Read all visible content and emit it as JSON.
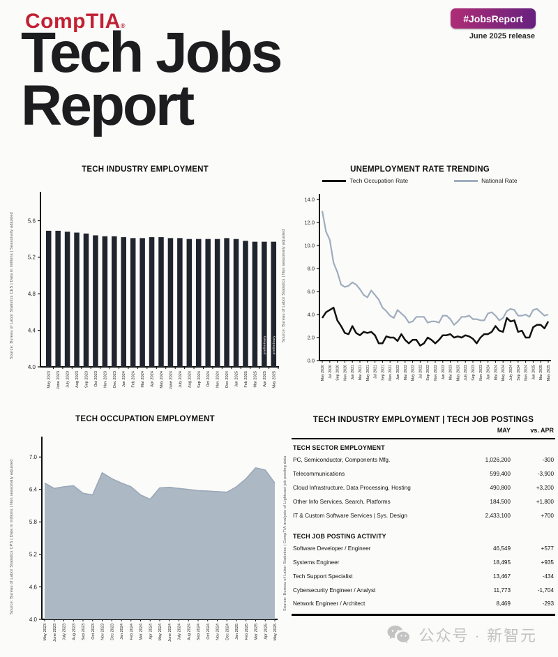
{
  "header": {
    "logo_text": "CompTIA",
    "logo_reg": "®",
    "title_line1": "Tech Jobs",
    "title_line2": "Report",
    "badge_label": "#JobsReport",
    "release_label": "June 2025 release"
  },
  "colors": {
    "brand_red": "#c22033",
    "badge_gradient_left": "#b02d75",
    "badge_gradient_right": "#64217f",
    "bar_color": "#20242e",
    "tech_line": "#111111",
    "national_line": "#9fadbd",
    "area_fill": "#adb8c5",
    "area_stroke": "#9aa8b8",
    "watermark_gray": "#c3c3c3"
  },
  "chart_data": [
    {
      "id": "tech-industry-employment",
      "type": "bar",
      "title": "TECH INDUSTRY EMPLOYMENT",
      "source_label": "Source: Bureau of Labor Statistics CES | Data in millions | Seasonally adjusted",
      "categories": [
        "May 2023",
        "June 2023",
        "July 2023",
        "Aug 2023",
        "Sep 2023",
        "Oct 2023",
        "Nov 2023",
        "Dec 2023",
        "Jan 2024",
        "Feb 2024",
        "Mar 2024",
        "Apr 2024",
        "May 2024",
        "June 2024",
        "July 2024",
        "Aug 2024",
        "Sep 2024",
        "Oct 2024",
        "Nov 2024",
        "Dec 2024",
        "Jan 2025",
        "Feb 2025",
        "Mar 2025",
        "Apr 2025",
        "May 2025"
      ],
      "values": [
        5.49,
        5.49,
        5.48,
        5.47,
        5.46,
        5.44,
        5.43,
        5.43,
        5.42,
        5.41,
        5.41,
        5.42,
        5.42,
        5.41,
        5.41,
        5.4,
        5.4,
        5.4,
        5.4,
        5.41,
        5.4,
        5.38,
        5.37,
        5.37,
        5.37
      ],
      "ylim": [
        4.0,
        5.81
      ],
      "yticks": [
        4.0,
        4.4,
        4.8,
        5.2,
        5.6
      ],
      "bar_annotation": "preliminary",
      "bar_annotation_indices": [
        23,
        24
      ],
      "grid": false
    },
    {
      "id": "unemployment-rate-trending",
      "type": "line",
      "title": "UNEMPLOYMENT RATE TRENDING",
      "source_label": "Source: Bureau of Labor Statistics | Non seasonally adjusted",
      "x_tick_labels": [
        "May 2020",
        "Jul 2020",
        "Sep 2020",
        "Nov 2020",
        "Jan 2021",
        "Mar 2021",
        "May 2021",
        "Jul 2021",
        "Sep 2021",
        "Nov 2021",
        "Jan 2022",
        "Mar 2022",
        "May 2022",
        "Jul 2022",
        "Sep 2022",
        "Nov 2022",
        "Jan 2023",
        "Mar 2023",
        "May 2023",
        "July 2023",
        "Sep 2023",
        "Nov 2023",
        "Jan 2024",
        "Mar 2024",
        "May 2024",
        "July 2024",
        "Sep 2024",
        "Nov 2024",
        "Jan 2025",
        "Mar 2025",
        "May 2025"
      ],
      "x_tick_every": 2,
      "series": [
        {
          "name": "National Rate",
          "values": [
            13.0,
            11.2,
            10.5,
            8.5,
            7.7,
            6.6,
            6.4,
            6.5,
            6.8,
            6.6,
            6.2,
            5.7,
            5.5,
            6.1,
            5.7,
            5.3,
            4.6,
            4.3,
            3.9,
            3.7,
            4.4,
            4.1,
            3.8,
            3.3,
            3.4,
            3.8,
            3.8,
            3.8,
            3.3,
            3.4,
            3.4,
            3.3,
            3.9,
            3.9,
            3.6,
            3.1,
            3.4,
            3.8,
            3.8,
            3.9,
            3.6,
            3.6,
            3.5,
            3.5,
            4.1,
            4.2,
            3.9,
            3.5,
            3.7,
            4.3,
            4.5,
            4.4,
            3.9,
            3.9,
            4.0,
            3.8,
            4.4,
            4.5,
            4.2,
            3.9,
            4.0
          ]
        },
        {
          "name": "Tech Occupation Rate",
          "values": [
            3.7,
            4.2,
            4.4,
            4.6,
            3.5,
            3.0,
            2.4,
            2.3,
            3.0,
            2.4,
            2.2,
            2.5,
            2.4,
            2.5,
            2.2,
            1.5,
            1.5,
            2.1,
            2.0,
            2.0,
            1.7,
            2.3,
            1.8,
            1.5,
            1.8,
            1.8,
            1.3,
            1.5,
            2.0,
            1.8,
            1.5,
            1.8,
            2.2,
            2.2,
            2.3,
            2.0,
            2.1,
            2.0,
            2.2,
            2.1,
            1.9,
            1.5,
            2.0,
            2.3,
            2.3,
            2.5,
            3.0,
            2.6,
            2.5,
            3.7,
            3.4,
            3.5,
            2.5,
            2.6,
            2.0,
            2.0,
            2.9,
            3.1,
            3.1,
            2.8,
            3.4
          ]
        }
      ],
      "ylim": [
        0,
        14
      ],
      "yticks": [
        0,
        2,
        4,
        6,
        8,
        10,
        12,
        14
      ],
      "legend_position": "top",
      "grid": false
    },
    {
      "id": "tech-occupation-employment",
      "type": "area",
      "title": "TECH OCCUPATION EMPLOYMENT",
      "source_label": "Source: Bureau of Labor Statistics CPS | Data in millions | Non seasonally adjusted",
      "categories": [
        "May 2023",
        "June 2023",
        "July 2023",
        "Aug 2023",
        "Sep 2023",
        "Oct 2023",
        "Nov 2023",
        "Dec 2023",
        "Jan 2024",
        "Feb 2024",
        "Mar 2024",
        "Apr 2024",
        "May 2024",
        "June 2024",
        "July 2024",
        "Aug 2024",
        "Sep 2024",
        "Oct 2024",
        "Nov 2024",
        "Dec 2024",
        "Jan 2025",
        "Feb 2025",
        "Mar 2025",
        "Apr 2025",
        "May 2025"
      ],
      "values": [
        6.52,
        6.42,
        6.45,
        6.47,
        6.33,
        6.3,
        6.71,
        6.6,
        6.52,
        6.45,
        6.3,
        6.22,
        6.43,
        6.44,
        6.42,
        6.4,
        6.38,
        6.37,
        6.36,
        6.35,
        6.45,
        6.6,
        6.8,
        6.76,
        6.52
      ],
      "ylim": [
        4.0,
        7.3
      ],
      "yticks": [
        4.0,
        4.6,
        5.2,
        5.8,
        6.4,
        7.0
      ],
      "grid": false
    },
    {
      "id": "tech-employment-job-postings",
      "type": "table",
      "title": "TECH INDUSTRY EMPLOYMENT | TECH JOB POSTINGS",
      "source_label": "Source: Bureau of Labor Statistics | CompTIA analysis of Lightcast job posting data",
      "columns": [
        "",
        "MAY",
        "vs. APR"
      ],
      "sections": [
        {
          "header": "TECH SECTOR EMPLOYMENT",
          "rows": [
            [
              "PC, Semiconductor, Components Mfg.",
              "1,026,200",
              "-300"
            ],
            [
              "Telecommunications",
              "599,400",
              "-3,900"
            ],
            [
              "Cloud Infrastructure, Data Processing, Hosting",
              "490,800",
              "+3,200"
            ],
            [
              "Other Info Services, Search, Platforms",
              "184,500",
              "+1,800"
            ],
            [
              "IT & Custom Software Services | Sys. Design",
              "2,433,100",
              "+700"
            ]
          ]
        },
        {
          "header": "TECH JOB POSTING ACTIVITY",
          "rows": [
            [
              "Software Developer / Engineer",
              "46,549",
              "+577"
            ],
            [
              "Systems Engineer",
              "18,495",
              "+935"
            ],
            [
              "Tech Support Specialist",
              "13,467",
              "-434"
            ],
            [
              "Cybersecurity Engineer / Analyst",
              "11,773",
              "-1,704"
            ],
            [
              "Network Engineer / Architect",
              "8,469",
              "-293"
            ]
          ]
        }
      ]
    }
  ],
  "footer": {
    "watermark": "公众号 · 新智元"
  }
}
